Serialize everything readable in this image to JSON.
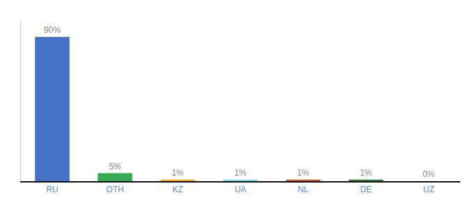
{
  "chart_data": {
    "type": "bar",
    "categories": [
      "RU",
      "OTH",
      "KZ",
      "UA",
      "NL",
      "DE",
      "UZ"
    ],
    "values": [
      90,
      5,
      1,
      1,
      1,
      1,
      0
    ],
    "value_labels": [
      "90%",
      "5%",
      "1%",
      "1%",
      "1%",
      "1%",
      "0%"
    ],
    "colors": [
      "#4472c4",
      "#34a853",
      "#f9a825",
      "#81d4fa",
      "#bf5c2c",
      "#2e7d32",
      "#4472c4"
    ],
    "ylim": [
      0,
      100
    ],
    "grid": false,
    "data_labels": true,
    "tick_labels": "x"
  }
}
